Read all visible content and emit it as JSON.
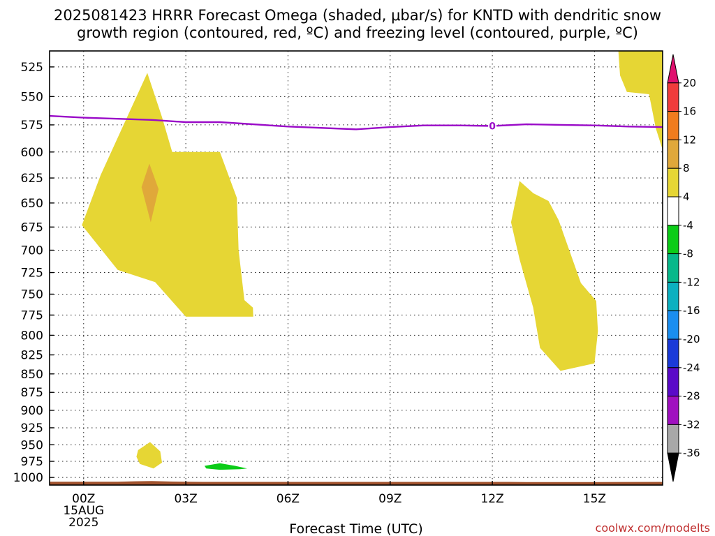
{
  "title": {
    "line1": "2025081423 HRRR Forecast Omega (shaded, μbar/s) for KNTD with dendritic snow",
    "line2": "growth region (contoured, red, ºC) and freezing level (contoured, purple, ºC)"
  },
  "credit": {
    "text": "coolwx.com/modelts",
    "color": "#c03030"
  },
  "chart_data": {
    "type": "time-height",
    "xlabel": "Forecast Time (UTC)",
    "x_unit": "hours since 2025-08-15 00Z",
    "xlim": [
      -1.0,
      17.0
    ],
    "ylim_hpa": [
      512,
      1012
    ],
    "y_scale": "log-pressure (inverted)",
    "y_ticks": [
      525,
      550,
      575,
      600,
      625,
      650,
      675,
      700,
      725,
      750,
      775,
      800,
      825,
      850,
      875,
      900,
      925,
      950,
      975,
      1000
    ],
    "x_ticks": [
      {
        "hour": 0,
        "lines": [
          "00Z",
          "15AUG",
          "2025"
        ]
      },
      {
        "hour": 3,
        "lines": [
          "03Z"
        ]
      },
      {
        "hour": 6,
        "lines": [
          "06Z"
        ]
      },
      {
        "hour": 9,
        "lines": [
          "09Z"
        ]
      },
      {
        "hour": 12,
        "lines": [
          "12Z"
        ]
      },
      {
        "hour": 15,
        "lines": [
          "15Z"
        ]
      }
    ],
    "grid": true,
    "colorbar": {
      "unit": "μbar/s",
      "labels": [
        "20",
        "16",
        "12",
        "8",
        "4",
        "-4",
        "-8",
        "-12",
        "-16",
        "-20",
        "-24",
        "-28",
        "-32",
        "-36"
      ],
      "bins": [
        {
          "range": [
            20,
            null
          ],
          "color": "#e0106e",
          "arrow": true
        },
        {
          "range": [
            16,
            20
          ],
          "color": "#f03c3c"
        },
        {
          "range": [
            12,
            16
          ],
          "color": "#f07c1e"
        },
        {
          "range": [
            8,
            12
          ],
          "color": "#e0a83a"
        },
        {
          "range": [
            4,
            8
          ],
          "color": "#e6d634"
        },
        {
          "range": [
            -4,
            4
          ],
          "color": "#ffffff"
        },
        {
          "range": [
            -8,
            -4
          ],
          "color": "#0ccc18"
        },
        {
          "range": [
            -12,
            -8
          ],
          "color": "#08b88a"
        },
        {
          "range": [
            -16,
            -12
          ],
          "color": "#0cb0c0"
        },
        {
          "range": [
            -20,
            -16
          ],
          "color": "#1a8ef0"
        },
        {
          "range": [
            -24,
            -20
          ],
          "color": "#1a3ad8"
        },
        {
          "range": [
            -28,
            -24
          ],
          "color": "#5a0ac8"
        },
        {
          "range": [
            -32,
            -28
          ],
          "color": "#a010c0"
        },
        {
          "range": [
            -36,
            -32
          ],
          "color": "#a8a8a8"
        },
        {
          "range": [
            null,
            -36
          ],
          "color": "#000000",
          "arrow": true
        }
      ]
    },
    "omega_regions": [
      {
        "name": "upward-motion-area-1",
        "range": [
          4,
          8
        ],
        "color": "#e6d634",
        "points": [
          [
            -0.05,
            673
          ],
          [
            0.5,
            622
          ],
          [
            1.1,
            580
          ],
          [
            1.87,
            530
          ],
          [
            2.3,
            568
          ],
          [
            2.6,
            600
          ],
          [
            4.0,
            600
          ],
          [
            4.5,
            645
          ],
          [
            4.55,
            700
          ],
          [
            4.72,
            757
          ],
          [
            4.97,
            766
          ],
          [
            4.98,
            777
          ],
          [
            3.0,
            777
          ],
          [
            2.1,
            736
          ],
          [
            1.0,
            722
          ]
        ]
      },
      {
        "name": "upward-motion-core-1",
        "range": [
          8,
          12
        ],
        "color": "#e0a83a",
        "points": [
          [
            1.93,
            611
          ],
          [
            2.2,
            636
          ],
          [
            1.97,
            670
          ],
          [
            1.7,
            634
          ]
        ]
      },
      {
        "name": "upward-motion-area-2",
        "range": [
          4,
          8
        ],
        "color": "#e6d634",
        "points": [
          [
            12.55,
            670
          ],
          [
            12.8,
            628
          ],
          [
            13.2,
            640
          ],
          [
            13.65,
            648
          ],
          [
            13.95,
            668
          ],
          [
            14.6,
            737
          ],
          [
            15.05,
            758
          ],
          [
            15.1,
            795
          ],
          [
            15.0,
            836
          ],
          [
            14.0,
            846
          ],
          [
            13.4,
            816
          ],
          [
            13.2,
            766
          ],
          [
            12.8,
            710
          ]
        ]
      },
      {
        "name": "upward-motion-area-3",
        "range": [
          4,
          8
        ],
        "color": "#e6d634",
        "points": [
          [
            16.3,
            512
          ],
          [
            17.0,
            512
          ],
          [
            17.0,
            598
          ],
          [
            16.8,
            578
          ],
          [
            16.6,
            548
          ],
          [
            15.95,
            546
          ],
          [
            15.75,
            532
          ],
          [
            15.7,
            512
          ]
        ]
      },
      {
        "name": "upward-motion-area-4",
        "range": [
          4,
          8
        ],
        "color": "#e6d634",
        "points": [
          [
            1.6,
            958
          ],
          [
            1.95,
            946
          ],
          [
            2.25,
            960
          ],
          [
            2.3,
            977
          ],
          [
            2.05,
            986
          ],
          [
            1.65,
            979
          ],
          [
            1.55,
            968
          ]
        ]
      },
      {
        "name": "downward-motion-area-1",
        "range": [
          -8,
          -4
        ],
        "color": "#0ccc18",
        "points": [
          [
            3.55,
            982
          ],
          [
            4.0,
            978
          ],
          [
            4.45,
            982
          ],
          [
            4.8,
            986
          ],
          [
            4.6,
            987
          ],
          [
            4.0,
            988
          ],
          [
            3.6,
            986
          ]
        ]
      }
    ],
    "freezing_level": {
      "label": "0",
      "label_at_hour": 12,
      "color": "#9a0ac8",
      "points": [
        [
          -1.0,
          567
        ],
        [
          0.0,
          568.5
        ],
        [
          2.0,
          570.5
        ],
        [
          3.0,
          572.5
        ],
        [
          4.0,
          572.5
        ],
        [
          6.0,
          576.5
        ],
        [
          8.0,
          579
        ],
        [
          9.0,
          577
        ],
        [
          10.0,
          575.5
        ],
        [
          11.0,
          575.5
        ],
        [
          12.0,
          576
        ],
        [
          13.0,
          574.5
        ],
        [
          14.0,
          575
        ],
        [
          15.0,
          575.5
        ],
        [
          16.0,
          576.5
        ],
        [
          17.0,
          577
        ]
      ]
    },
    "surface_terrain": {
      "color": "#a0522d",
      "base_hpa": 1012,
      "points": [
        [
          -1.0,
          1006.8
        ],
        [
          1.0,
          1006.8
        ],
        [
          1.5,
          1006.0
        ],
        [
          2.0,
          1005.7
        ],
        [
          2.6,
          1006.5
        ],
        [
          3.5,
          1007.0
        ],
        [
          6.0,
          1007.0
        ],
        [
          9.0,
          1007.0
        ],
        [
          11.0,
          1007.0
        ],
        [
          12.5,
          1007.0
        ],
        [
          13.0,
          1007.3
        ],
        [
          15.0,
          1007.2
        ],
        [
          17.0,
          1007.0
        ]
      ]
    }
  }
}
